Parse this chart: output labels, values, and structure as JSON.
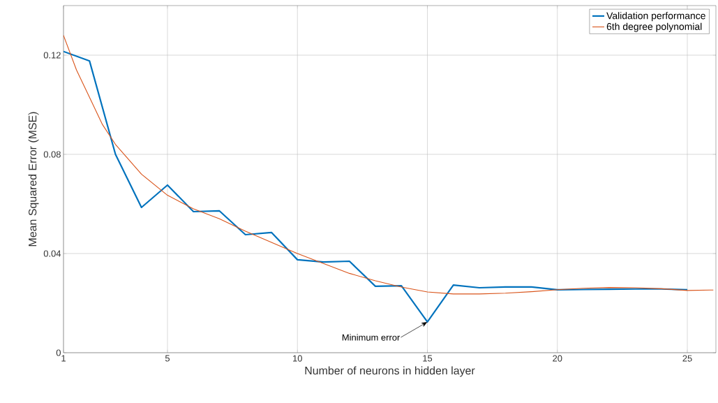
{
  "chart_data": {
    "type": "line",
    "xlabel": "Number of neurons in hidden layer",
    "ylabel": "Mean Squared Error (MSE)",
    "xlim": [
      1,
      26.1
    ],
    "ylim": [
      0,
      0.14
    ],
    "xticks": [
      1,
      5,
      10,
      15,
      20,
      25
    ],
    "yticks": [
      0,
      0.04,
      0.08,
      0.12
    ],
    "grid": true,
    "legend": "top right",
    "marker": "none",
    "line_style": "solid",
    "annotations": [
      {
        "text": "Minimum error",
        "x": 15,
        "y": 0.0124
      }
    ],
    "series": [
      {
        "name": "Validation performance",
        "color": "#0072bd",
        "x": [
          1,
          2,
          3,
          4,
          5,
          6,
          7,
          8,
          9,
          10,
          11,
          12,
          13,
          14,
          15,
          16,
          17,
          18,
          19,
          20,
          21,
          22,
          23,
          24,
          25
        ],
        "values": [
          0.1215,
          0.1177,
          0.08,
          0.0586,
          0.0676,
          0.0569,
          0.0572,
          0.0476,
          0.0485,
          0.0375,
          0.0366,
          0.0369,
          0.0268,
          0.027,
          0.0124,
          0.0273,
          0.0262,
          0.0265,
          0.0265,
          0.0254,
          0.0255,
          0.0256,
          0.0257,
          0.0257,
          0.0254
        ]
      },
      {
        "name": "6th degree polynomial",
        "color": "#d95319",
        "x": [
          1,
          1.5,
          2,
          2.5,
          3,
          4,
          5,
          6,
          7,
          8,
          9,
          10,
          11,
          12,
          13,
          14,
          15,
          16,
          17,
          18,
          19,
          20,
          21,
          22,
          23,
          24,
          25,
          26
        ],
        "values": [
          0.128,
          0.114,
          0.103,
          0.092,
          0.084,
          0.072,
          0.0635,
          0.058,
          0.054,
          0.049,
          0.0445,
          0.04,
          0.036,
          0.032,
          0.029,
          0.0265,
          0.0245,
          0.0237,
          0.0237,
          0.024,
          0.0246,
          0.0254,
          0.026,
          0.0263,
          0.0262,
          0.0258,
          0.0251,
          0.0253
        ]
      }
    ]
  }
}
